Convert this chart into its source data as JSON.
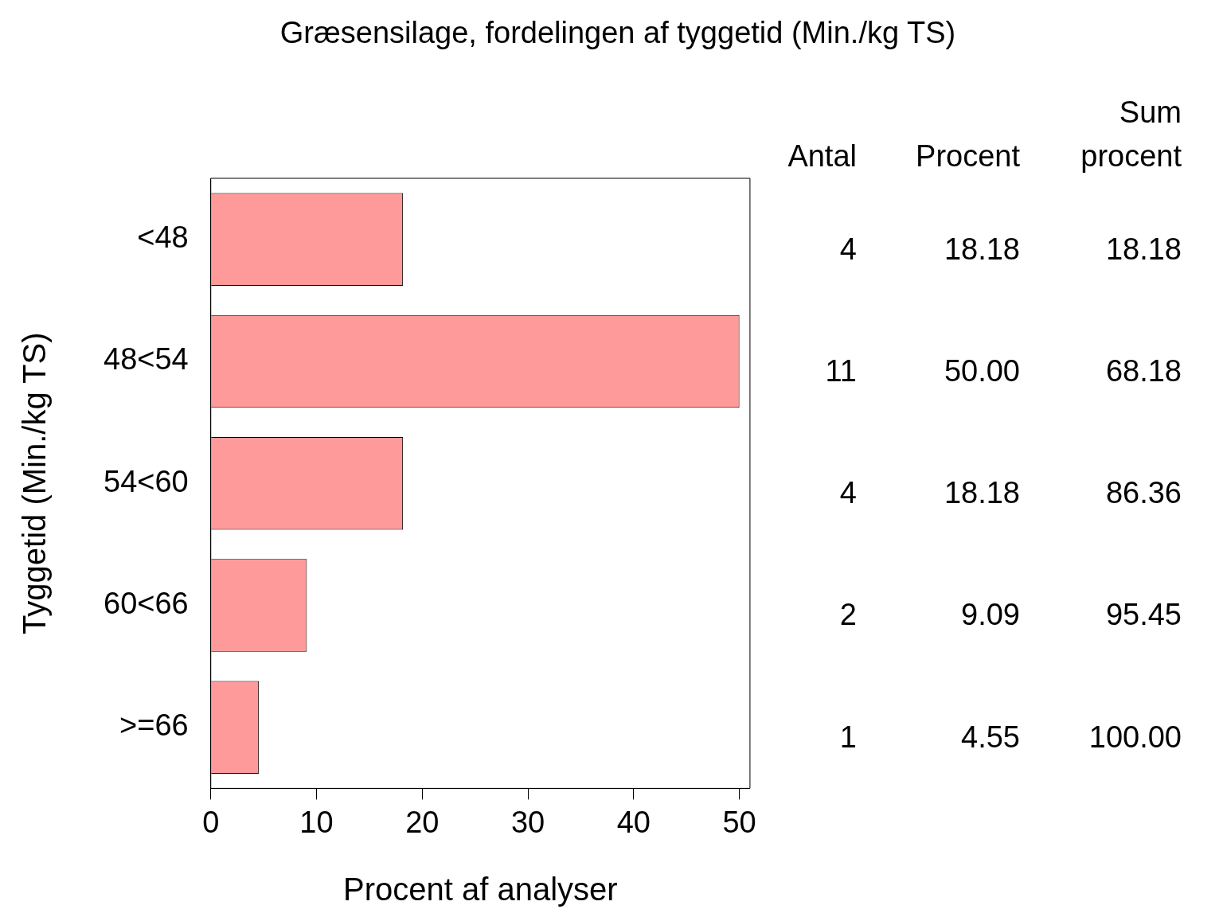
{
  "chart_data": {
    "type": "bar",
    "orientation": "horizontal",
    "title": "Græsensilage, fordelingen af tyggetid (Min./kg TS)",
    "xlabel": "Procent af analyser",
    "ylabel": "Tyggetid (Min./kg TS)",
    "categories": [
      "<48",
      "48<54",
      "54<60",
      "60<66",
      ">=66"
    ],
    "values": [
      18.18,
      50.0,
      18.18,
      9.09,
      4.55
    ],
    "value_labels": [
      "18.18",
      "50.00",
      "18.18",
      "9.09",
      "4.55"
    ],
    "color": "#ff9a9a",
    "xlim": [
      0,
      51
    ],
    "xticks": [
      0,
      10,
      20,
      30,
      40,
      50
    ],
    "annotations": [
      "Antal",
      "Procent",
      "Sum procent",
      "4",
      "11",
      "4",
      "2",
      "1",
      "18.18",
      "68.18",
      "86.36",
      "95.45",
      "100.00"
    ]
  }
}
